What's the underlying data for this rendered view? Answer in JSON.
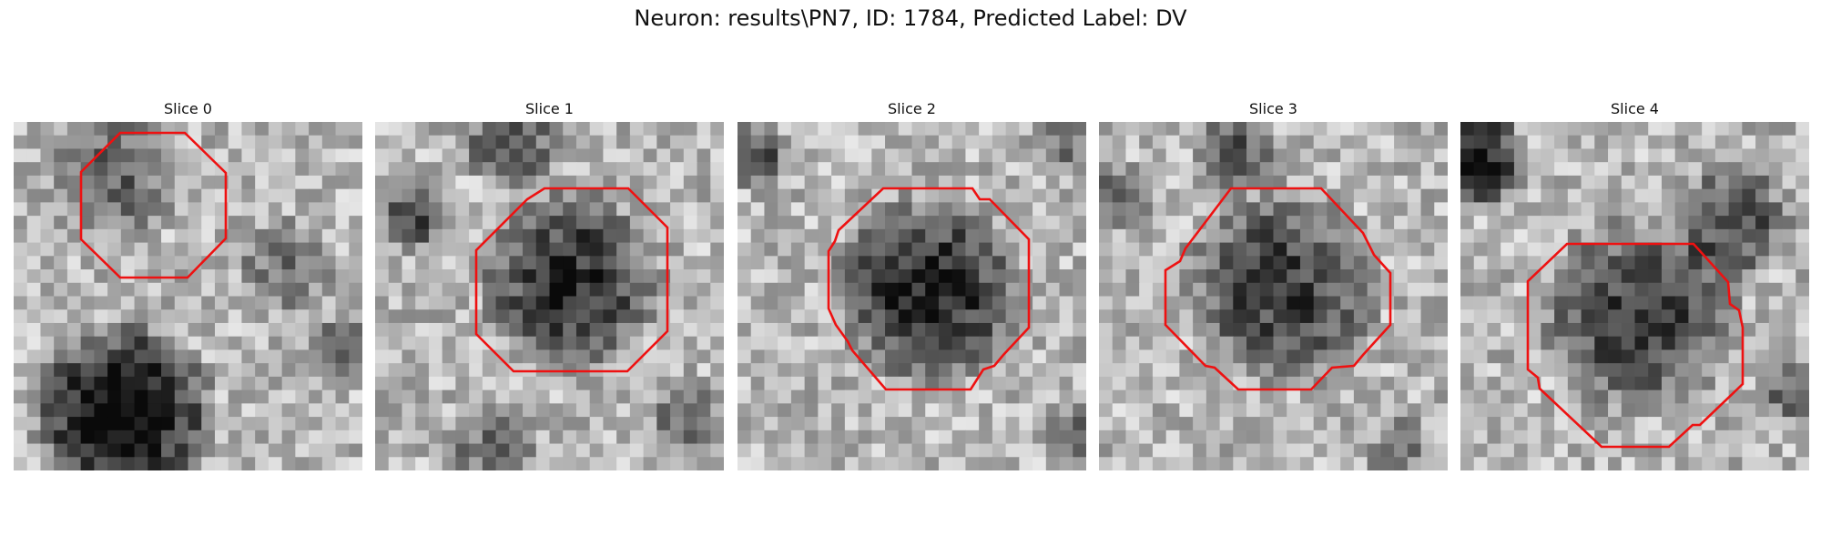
{
  "figure": {
    "title": "Neuron: results\\PN7, ID: 1784, Predicted Label: DV"
  },
  "panels": [
    {
      "title": "Slice 0"
    },
    {
      "title": "Slice 1"
    },
    {
      "title": "Slice 2"
    },
    {
      "title": "Slice 3"
    },
    {
      "title": "Slice 4"
    }
  ],
  "colors": {
    "contour": "#ee1111",
    "background": "#ffffff"
  }
}
